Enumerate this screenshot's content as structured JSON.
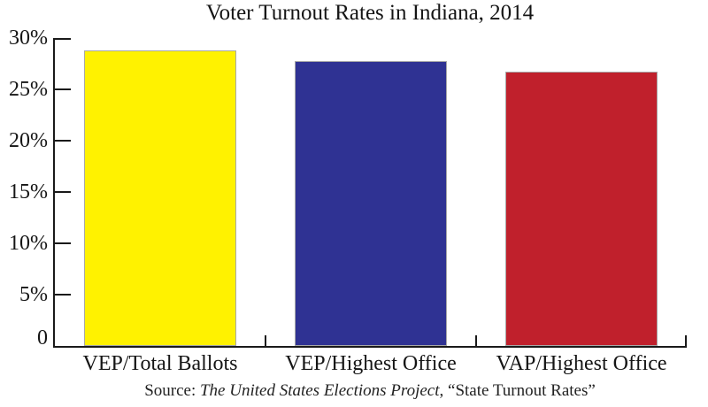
{
  "chart_data": {
    "type": "bar",
    "title": "Voter Turnout Rates in Indiana, 2014",
    "categories": [
      "VEP/Total Ballots",
      "VEP/Highest Office",
      "VAP/Highest Office"
    ],
    "values": [
      28.8,
      27.8,
      26.7
    ],
    "unit": "%",
    "bar_colors": [
      "#FFF200",
      "#2F3293",
      "#C0202C"
    ],
    "bar_border_color": "#A8A8A8",
    "axis_color": "#1A1A1A",
    "ylim": [
      0,
      30
    ],
    "ytick_step": 5,
    "ytick_labels": [
      "0",
      "5%",
      "10%",
      "15%",
      "20%",
      "25%",
      "30%"
    ],
    "grid": false,
    "legend": null,
    "xlabel": "",
    "ylabel": ""
  },
  "source": {
    "prefix": "Source: ",
    "italic": "The United States Elections Project",
    "suffix": ", “State Turnout Rates”"
  }
}
